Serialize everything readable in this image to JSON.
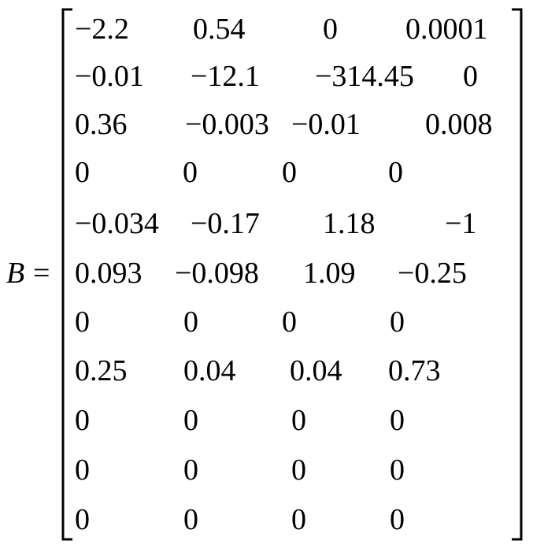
{
  "matrix": {
    "name": "B",
    "operator": "=",
    "rows": [
      [
        "−2.2",
        "0.54",
        "0",
        "0.0001"
      ],
      [
        "−0.01",
        "−12.1",
        "−314.45",
        "0"
      ],
      [
        "0.36",
        "−0.003",
        "−0.01",
        "0.008"
      ],
      [
        "0",
        "0",
        "0",
        "0"
      ],
      [
        "−0.034",
        "−0.17",
        "1.18",
        "−1"
      ],
      [
        "0.093",
        "−0.098",
        "1.09",
        "−0.25"
      ],
      [
        "0",
        "0",
        "0",
        "0"
      ],
      [
        "0.25",
        "0.04",
        "0.04",
        "0.73"
      ],
      [
        "0",
        "0",
        "0",
        "0"
      ],
      [
        "0",
        "0",
        "0",
        "0"
      ],
      [
        "0",
        "0",
        "0",
        "0"
      ]
    ]
  }
}
